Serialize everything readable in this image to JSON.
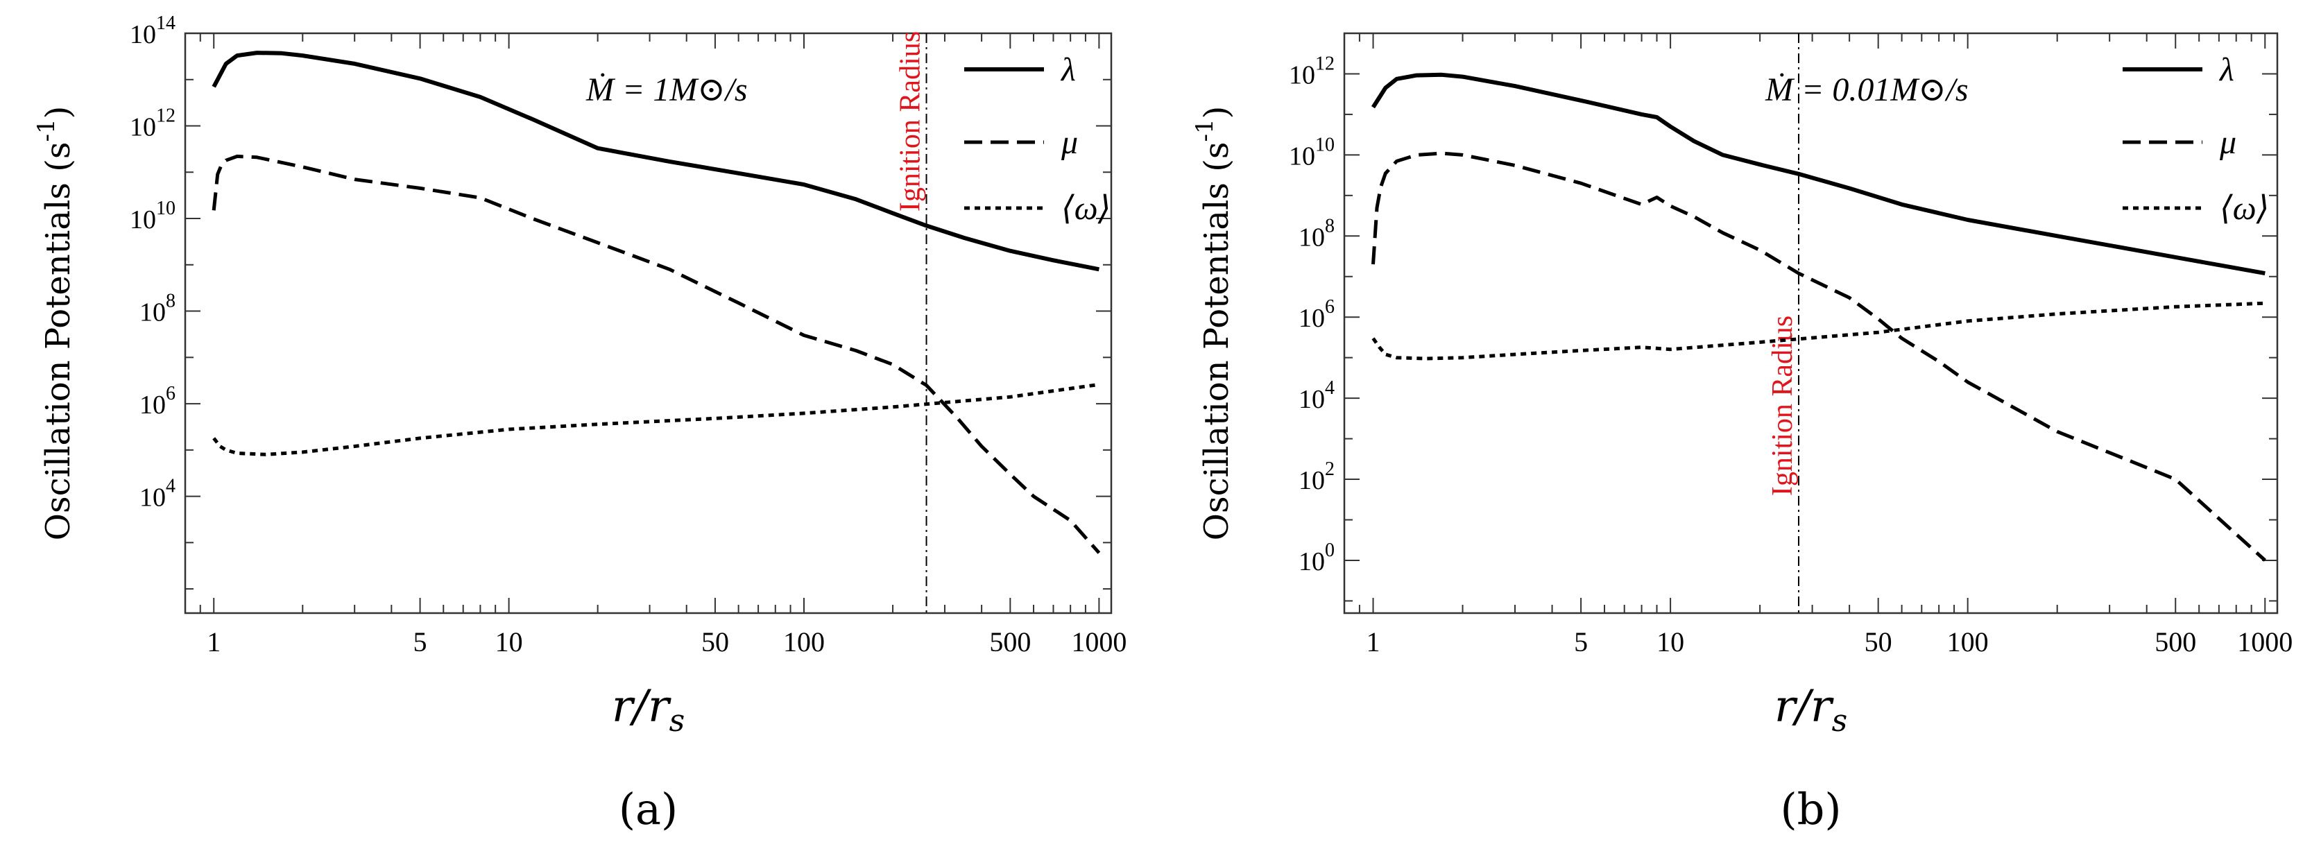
{
  "chart_data": [
    {
      "type": "line",
      "panel_label": "(a)",
      "xscale": "log",
      "yscale": "log",
      "xlabel": "r/r_s",
      "ylabel": "Oscillation Potentials (s^-1)",
      "xlim": [
        0.8,
        1100
      ],
      "ylim": [
        30,
        100000000000000.0
      ],
      "xticks": [
        1,
        5,
        10,
        50,
        100,
        500,
        1000
      ],
      "xtick_labels": [
        "1",
        "5",
        "10",
        "50",
        "100",
        "500",
        "1000"
      ],
      "yticks": [
        10000,
        1000000,
        100000000,
        10000000000,
        1000000000000,
        100000000000000
      ],
      "ytick_labels": [
        {
          "base": "10",
          "exp": "4"
        },
        {
          "base": "10",
          "exp": "6"
        },
        {
          "base": "10",
          "exp": "8"
        },
        {
          "base": "10",
          "exp": "10"
        },
        {
          "base": "10",
          "exp": "12"
        },
        {
          "base": "10",
          "exp": "14"
        }
      ],
      "annotation": "Ṁ = 1M⊙/s",
      "vline": {
        "x": 260,
        "label": "Ignition Radius"
      },
      "legend": [
        "λ",
        "μ",
        "⟨ω⟩"
      ],
      "legend_position": "top-right",
      "series": [
        {
          "name": "λ",
          "style": "solid",
          "x": [
            1,
            1.1,
            1.2,
            1.4,
            1.7,
            2,
            3,
            5,
            8,
            12,
            20,
            35,
            60,
            100,
            150,
            200,
            260,
            350,
            500,
            700,
            1000
          ],
          "y": [
            7000000000000.0,
            22000000000000.0,
            33000000000000.0,
            38000000000000.0,
            37000000000000.0,
            33000000000000.0,
            22000000000000.0,
            10500000000000.0,
            4200000000000.0,
            1400000000000.0,
            330000000000.0,
            170000000000.0,
            95000000000.0,
            54000000000.0,
            26000000000.0,
            13000000000.0,
            7000000000.0,
            3800000000.0,
            2000000000.0,
            1250000000.0,
            800000000.0
          ]
        },
        {
          "name": "μ",
          "style": "dashed",
          "x": [
            1,
            1.03,
            1.06,
            1.1,
            1.2,
            1.4,
            2,
            3,
            5,
            8,
            12,
            20,
            35,
            60,
            100,
            150,
            200,
            260,
            330,
            400,
            500,
            600,
            800,
            1000
          ],
          "y": [
            15000000000.0,
            90000000000.0,
            140000000000.0,
            180000000000.0,
            220000000000.0,
            210000000000.0,
            130000000000.0,
            70000000000.0,
            45000000000.0,
            28000000000.0,
            10000000000.0,
            3000000000.0,
            800000000.0,
            150000000.0,
            30000000.0,
            14000000.0,
            7000000.0,
            2500000.0,
            500000.0,
            120000.0,
            30000.0,
            10000.0,
            3000.0,
            600.0
          ]
        },
        {
          "name": "⟨ω⟩",
          "style": "dotted",
          "x": [
            1,
            1.05,
            1.1,
            1.2,
            1.5,
            2,
            3,
            5,
            10,
            20,
            50,
            100,
            200,
            500,
            1000
          ],
          "y": [
            180000.0,
            120000.0,
            100000.0,
            85000.0,
            80000.0,
            90000.0,
            120000.0,
            180000.0,
            280000.0,
            360000.0,
            480000.0,
            620000.0,
            850000.0,
            1400000.0,
            2600000.0
          ]
        }
      ]
    },
    {
      "type": "line",
      "panel_label": "(b)",
      "xscale": "log",
      "yscale": "log",
      "xlabel": "r/r_s",
      "ylabel": "Oscillation Potentials (s^-1)",
      "xlim": [
        0.8,
        1100
      ],
      "ylim": [
        0.05,
        10000000000000.0
      ],
      "xticks": [
        1,
        5,
        10,
        50,
        100,
        500,
        1000
      ],
      "xtick_labels": [
        "1",
        "5",
        "10",
        "50",
        "100",
        "500",
        "1000"
      ],
      "yticks": [
        1,
        100,
        10000,
        1000000,
        100000000,
        10000000000,
        1000000000000
      ],
      "ytick_labels": [
        {
          "base": "10",
          "exp": "0"
        },
        {
          "base": "10",
          "exp": "2"
        },
        {
          "base": "10",
          "exp": "4"
        },
        {
          "base": "10",
          "exp": "6"
        },
        {
          "base": "10",
          "exp": "8"
        },
        {
          "base": "10",
          "exp": "10"
        },
        {
          "base": "10",
          "exp": "12"
        }
      ],
      "annotation": "Ṁ = 0.01M⊙/s",
      "vline": {
        "x": 27,
        "label": "Ignition Radius"
      },
      "legend": [
        "λ",
        "μ",
        "⟨ω⟩"
      ],
      "legend_position": "top-right",
      "series": [
        {
          "name": "λ",
          "style": "solid",
          "x": [
            1,
            1.1,
            1.2,
            1.4,
            1.7,
            2,
            3,
            5,
            8,
            9,
            10,
            12,
            15,
            20,
            27,
            40,
            60,
            100,
            200,
            500,
            1000
          ],
          "y": [
            150000000000.0,
            450000000000.0,
            750000000000.0,
            920000000000.0,
            950000000000.0,
            850000000000.0,
            500000000000.0,
            220000000000.0,
            100000000000.0,
            85000000000.0,
            50000000000.0,
            22000000000.0,
            10000000000.0,
            5800000000.0,
            3400000000.0,
            1500000000.0,
            600000000.0,
            250000000.0,
            100000000.0,
            30000000.0,
            12000000.0
          ]
        },
        {
          "name": "μ",
          "style": "dashed",
          "x": [
            1,
            1.03,
            1.06,
            1.1,
            1.2,
            1.4,
            1.7,
            2,
            3,
            5,
            8,
            9,
            10,
            12,
            15,
            20,
            27,
            40,
            50,
            60,
            80,
            100,
            200,
            500,
            1000
          ],
          "y": [
            20000000.0,
            500000000.0,
            1600000000.0,
            3500000000.0,
            7000000000.0,
            10000000000.0,
            11000000000.0,
            10000000000.0,
            5500000000.0,
            2000000000.0,
            600000000.0,
            900000000.0,
            550000000.0,
            300000000.0,
            120000000.0,
            45000000.0,
            12000000.0,
            3000000.0,
            900000.0,
            300000.0,
            80000.0,
            25000.0,
            1500.0,
            100.0,
            1
          ]
        },
        {
          "name": "⟨ω⟩",
          "style": "dotted",
          "x": [
            1,
            1.05,
            1.1,
            1.2,
            1.5,
            2,
            3,
            5,
            8,
            10,
            20,
            50,
            100,
            200,
            500,
            1000
          ],
          "y": [
            300000.0,
            180000.0,
            120000.0,
            100000.0,
            95000.0,
            100000.0,
            120000.0,
            150000.0,
            180000.0,
            160000.0,
            240000.0,
            420000.0,
            800000.0,
            1200000.0,
            1800000.0,
            2200000.0
          ]
        }
      ]
    }
  ]
}
